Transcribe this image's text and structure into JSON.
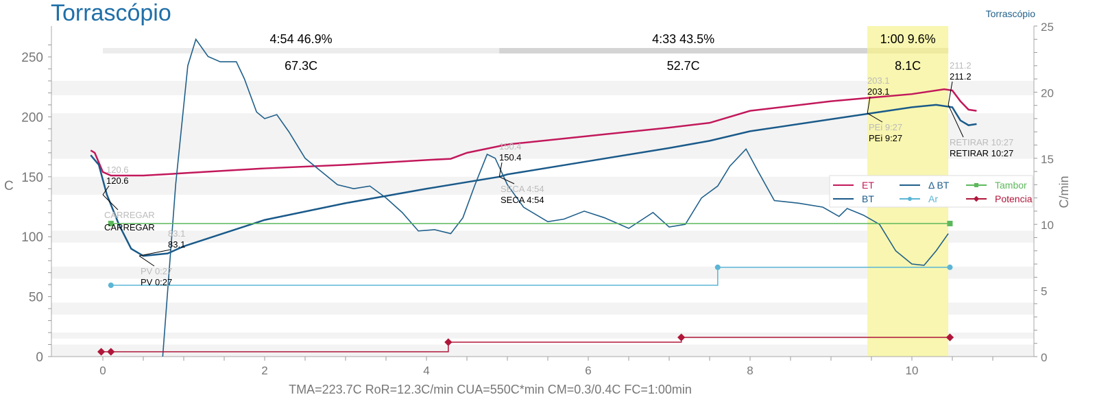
{
  "title": "Torrascópio",
  "subtitle": "Torrascópio",
  "stats": "TMA=223.7C   RoR=12.3C/min   CUA=550C*min   CM=0.3/0.4C   FC=1:00min",
  "chart_data": {
    "type": "line",
    "ylabel": "C",
    "y2label": "C/min",
    "xlim": [
      -0.3,
      11.5
    ],
    "ylim": [
      0,
      270
    ],
    "y2lim": [
      0,
      25
    ],
    "xticks": [
      "0",
      "2",
      "4",
      "6",
      "8",
      "10"
    ],
    "xtick_values": [
      0,
      2,
      4,
      6,
      8,
      10
    ],
    "yticks": [
      "0",
      "50",
      "100",
      "150",
      "200",
      "250"
    ],
    "ytick_values": [
      0,
      50,
      100,
      150,
      200,
      250
    ],
    "y2ticks": [
      "0",
      "5",
      "10",
      "15",
      "20",
      "25"
    ],
    "y2tick_values": [
      0,
      5,
      10,
      15,
      20,
      25
    ],
    "phases": [
      {
        "start": 0,
        "end": 4.9,
        "time": "4:54",
        "pct": "46.9%",
        "delta": "67.3C",
        "color": "#ececec"
      },
      {
        "start": 4.9,
        "end": 9.45,
        "time": "4:33",
        "pct": "43.5%",
        "delta": "52.7C",
        "color": "#d4d4d4"
      },
      {
        "start": 9.45,
        "end": 10.45,
        "time": "1:00",
        "pct": "9.6%",
        "delta": "8.1C",
        "color": "#f8f6b0"
      }
    ],
    "legend": {
      "placement": "right",
      "entries": [
        {
          "name": "ET",
          "color": "#c2185b"
        },
        {
          "name": "Δ BT",
          "color": "#1f5f8a"
        },
        {
          "name": "Tambor",
          "color": "#5cb85c"
        },
        {
          "name": "BT",
          "color": "#1a5a8a"
        },
        {
          "name": "Ar",
          "color": "#5bb5d5"
        },
        {
          "name": "Potencia",
          "color": "#b0163a"
        }
      ]
    },
    "series": [
      {
        "name": "ET",
        "axis": "left",
        "color": "#c2185b",
        "x": [
          -0.15,
          -0.1,
          0,
          0.1,
          0.5,
          1,
          2,
          3,
          4,
          4.3,
          4.5,
          5,
          6,
          7,
          7.5,
          8,
          9,
          9.5,
          10,
          10.4,
          10.5,
          10.6,
          10.7,
          10.8
        ],
        "y": [
          172,
          170,
          154,
          151,
          151,
          153,
          157,
          160,
          164,
          165,
          170,
          177,
          184,
          191,
          195,
          205,
          213,
          216,
          219,
          223,
          222,
          213,
          206,
          205
        ]
      },
      {
        "name": "BT",
        "axis": "left",
        "color": "#1a5a8a",
        "x": [
          -0.15,
          -0.05,
          0.05,
          0.2,
          0.35,
          0.5,
          0.8,
          1,
          1.5,
          2,
          3,
          4,
          4.9,
          5,
          6,
          7,
          7.5,
          8,
          9,
          9.5,
          10,
          10.3,
          10.5,
          10.6,
          10.7,
          10.8
        ],
        "y": [
          168,
          160,
          135,
          110,
          90,
          84,
          86,
          92,
          103,
          114,
          128,
          140,
          150,
          152,
          163,
          174,
          180,
          188,
          198,
          203,
          208,
          210,
          208,
          197,
          193,
          194
        ]
      },
      {
        "name": "Δ BT",
        "axis": "right",
        "color": "#1f5f8a",
        "x": [
          0.74,
          0.9,
          1.05,
          1.15,
          1.3,
          1.45,
          1.65,
          1.75,
          1.9,
          2.0,
          2.15,
          2.3,
          2.5,
          2.7,
          2.9,
          3.1,
          3.3,
          3.5,
          3.7,
          3.9,
          4.1,
          4.3,
          4.45,
          4.6,
          4.75,
          4.85,
          5.0,
          5.2,
          5.5,
          5.7,
          5.95,
          6.2,
          6.5,
          6.8,
          7.0,
          7.2,
          7.4,
          7.6,
          7.75,
          7.95,
          8.1,
          8.3,
          8.6,
          8.9,
          9.1,
          9.2,
          9.4,
          9.6,
          9.8,
          10.0,
          10.15,
          10.3,
          10.45
        ],
        "y": [
          0,
          13,
          22,
          24,
          22.7,
          22.3,
          22.3,
          21,
          18.5,
          18,
          18.3,
          17,
          15,
          14,
          13,
          12.7,
          12.9,
          12,
          10.9,
          9.5,
          9.6,
          9.3,
          10.5,
          13,
          15.3,
          15,
          13,
          11.3,
          10.2,
          10.4,
          11,
          10.5,
          9.7,
          10.9,
          9.8,
          10,
          12,
          12.9,
          14.4,
          15.7,
          14,
          11.8,
          11.6,
          11.3,
          10.6,
          11.2,
          10.7,
          10,
          8,
          7,
          6.9,
          8,
          9.3
        ]
      },
      {
        "name": "Tambor",
        "axis": "left",
        "color": "#5cb85c",
        "step": true,
        "x": [
          0.1,
          10.47
        ],
        "y": [
          111,
          111
        ],
        "markers": [
          0.1,
          10.47
        ]
      },
      {
        "name": "Ar",
        "axis": "left",
        "color": "#5bb5d5",
        "step": true,
        "x": [
          0.1,
          7.6,
          10.47
        ],
        "y": [
          59.5,
          74.5,
          74.5
        ],
        "markers": [
          0.1,
          7.6,
          10.47
        ]
      },
      {
        "name": "Potencia",
        "axis": "left",
        "color": "#b0163a",
        "step": true,
        "x": [
          -0.02,
          0.1,
          4.27,
          7.15,
          10.47
        ],
        "y": [
          4,
          4,
          12,
          16,
          16
        ],
        "markers": [
          -0.02,
          0.1,
          4.27,
          7.15,
          10.47
        ]
      }
    ],
    "annotations": [
      {
        "label": "CARREGAR",
        "value": "120.6",
        "x": 0,
        "y": 135
      },
      {
        "label": "PV 0:27",
        "value": "83.1",
        "x": 0.45,
        "y": 84
      },
      {
        "label": "SECA 4:54",
        "value": "150.4",
        "x": 4.9,
        "y": 150
      },
      {
        "label": "PEi 9:27",
        "value": "203.1",
        "x": 9.45,
        "y": 203
      },
      {
        "label": "RETIRAR 10:27",
        "value": "211.2",
        "x": 10.45,
        "y": 210
      }
    ]
  }
}
